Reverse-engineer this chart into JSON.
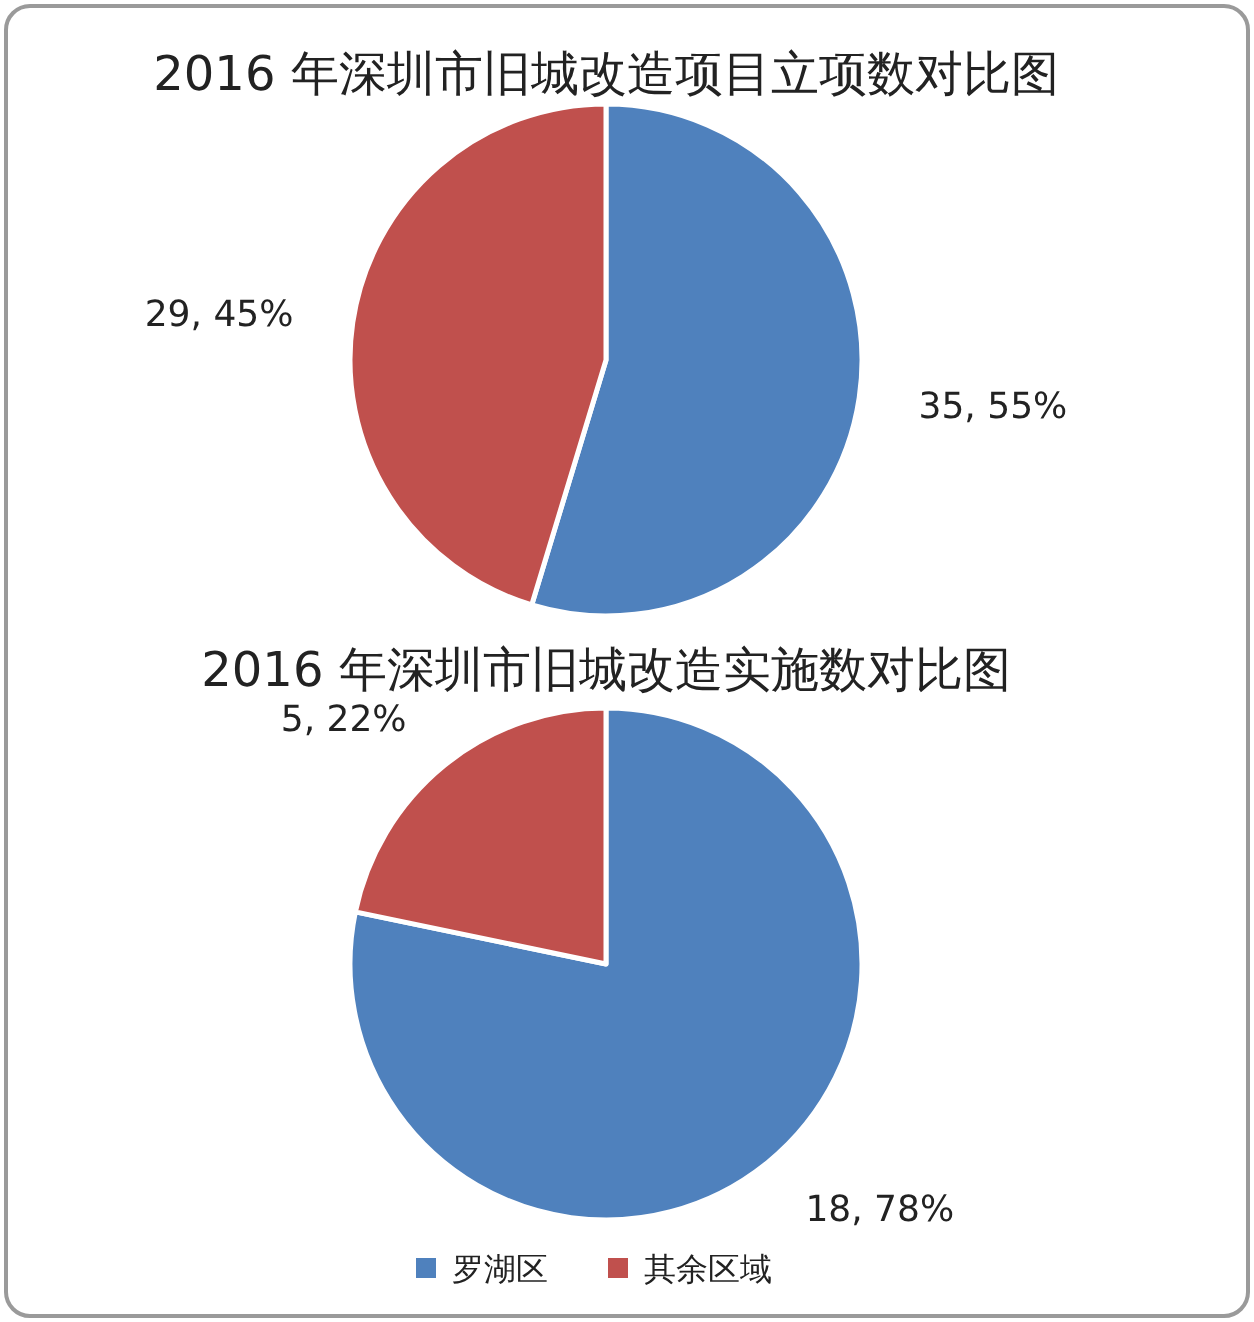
{
  "chart_data": [
    {
      "type": "pie",
      "title": "2016 年深圳市旧城改造项目立项数对比图",
      "categories": [
        null,
        null
      ],
      "values": [
        35,
        29
      ],
      "colors": [
        "#4f81bd",
        "#c0504d"
      ],
      "value_labels": [
        "35, 55%",
        "29, 45%"
      ],
      "legend": false
    },
    {
      "type": "pie",
      "title": "2016 年深圳市旧城改造实施数对比图",
      "categories": [
        "罗湖区",
        "其余区域"
      ],
      "values": [
        18,
        5
      ],
      "colors": [
        "#4f81bd",
        "#c0504d"
      ],
      "value_labels": [
        "18, 78%",
        "5, 22%"
      ],
      "legend": "bottom"
    }
  ]
}
